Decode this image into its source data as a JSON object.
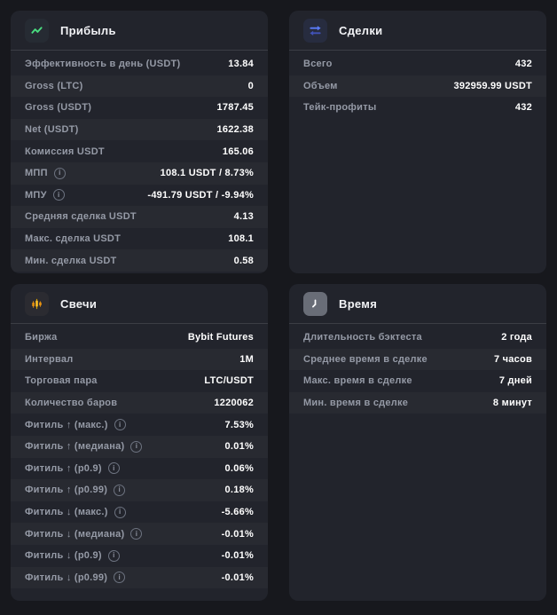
{
  "colors": {
    "page_bg": "#17181d",
    "card_bg": "#22242c",
    "profit_accent": "#4ade80",
    "trades_accent": "#5b7cfa",
    "candles_accent": "#f6a623",
    "time_accent": "#696d77",
    "label_gray": "#959aa6",
    "value_white": "#ffffff"
  },
  "cards": {
    "profit": {
      "title": "Прибыль",
      "icon": "trend-up-icon",
      "rows": [
        {
          "label": "Эффективность в день (USDT)",
          "value": "13.84"
        },
        {
          "label": "Gross (LTC)",
          "value": "0"
        },
        {
          "label": "Gross (USDT)",
          "value": "1787.45"
        },
        {
          "label": "Net (USDT)",
          "value": "1622.38"
        },
        {
          "label": "Комиссия USDT",
          "value": "165.06"
        },
        {
          "label": "МПП",
          "info": true,
          "value": "108.1 USDT / 8.73%"
        },
        {
          "label": "МПУ",
          "info": true,
          "value": "-491.79 USDT / -9.94%"
        },
        {
          "label": "Средняя сделка USDT",
          "value": "4.13"
        },
        {
          "label": "Макс. сделка USDT",
          "value": "108.1"
        },
        {
          "label": "Мин. сделка USDT",
          "value": "0.58"
        }
      ]
    },
    "trades": {
      "title": "Сделки",
      "icon": "swap-arrows-icon",
      "rows": [
        {
          "label": "Всего",
          "value": "432"
        },
        {
          "label": "Объем",
          "value": "392959.99 USDT"
        },
        {
          "label": "Тейк-профиты",
          "value": "432"
        }
      ]
    },
    "candles": {
      "title": "Свечи",
      "icon": "candlestick-icon",
      "rows": [
        {
          "label": "Биржа",
          "value": "Bybit Futures"
        },
        {
          "label": "Интервал",
          "value": "1M"
        },
        {
          "label": "Торговая пара",
          "value": "LTC/USDT"
        },
        {
          "label": "Количество баров",
          "value": "1220062"
        },
        {
          "label": "Фитиль ↑ (макс.)",
          "info": true,
          "value": "7.53%"
        },
        {
          "label": "Фитиль ↑ (медиана)",
          "info": true,
          "value": "0.01%"
        },
        {
          "label": "Фитиль ↑ (p0.9)",
          "info": true,
          "value": "0.06%"
        },
        {
          "label": "Фитиль ↑ (p0.99)",
          "info": true,
          "value": "0.18%"
        },
        {
          "label": "Фитиль ↓ (макс.)",
          "info": true,
          "value": "-5.66%"
        },
        {
          "label": "Фитиль ↓ (медиана)",
          "info": true,
          "value": "-0.01%"
        },
        {
          "label": "Фитиль ↓ (p0.9)",
          "info": true,
          "value": "-0.01%"
        },
        {
          "label": "Фитиль ↓ (p0.99)",
          "info": true,
          "value": "-0.01%"
        }
      ]
    },
    "time": {
      "title": "Время",
      "icon": "clock-icon",
      "rows": [
        {
          "label": "Длительность бэктеста",
          "value": "2 года"
        },
        {
          "label": "Среднее время в сделке",
          "value": "7 часов"
        },
        {
          "label": "Макс. время в сделке",
          "value": "7 дней"
        },
        {
          "label": "Мин. время в сделке",
          "value": "8 минут"
        }
      ]
    }
  }
}
